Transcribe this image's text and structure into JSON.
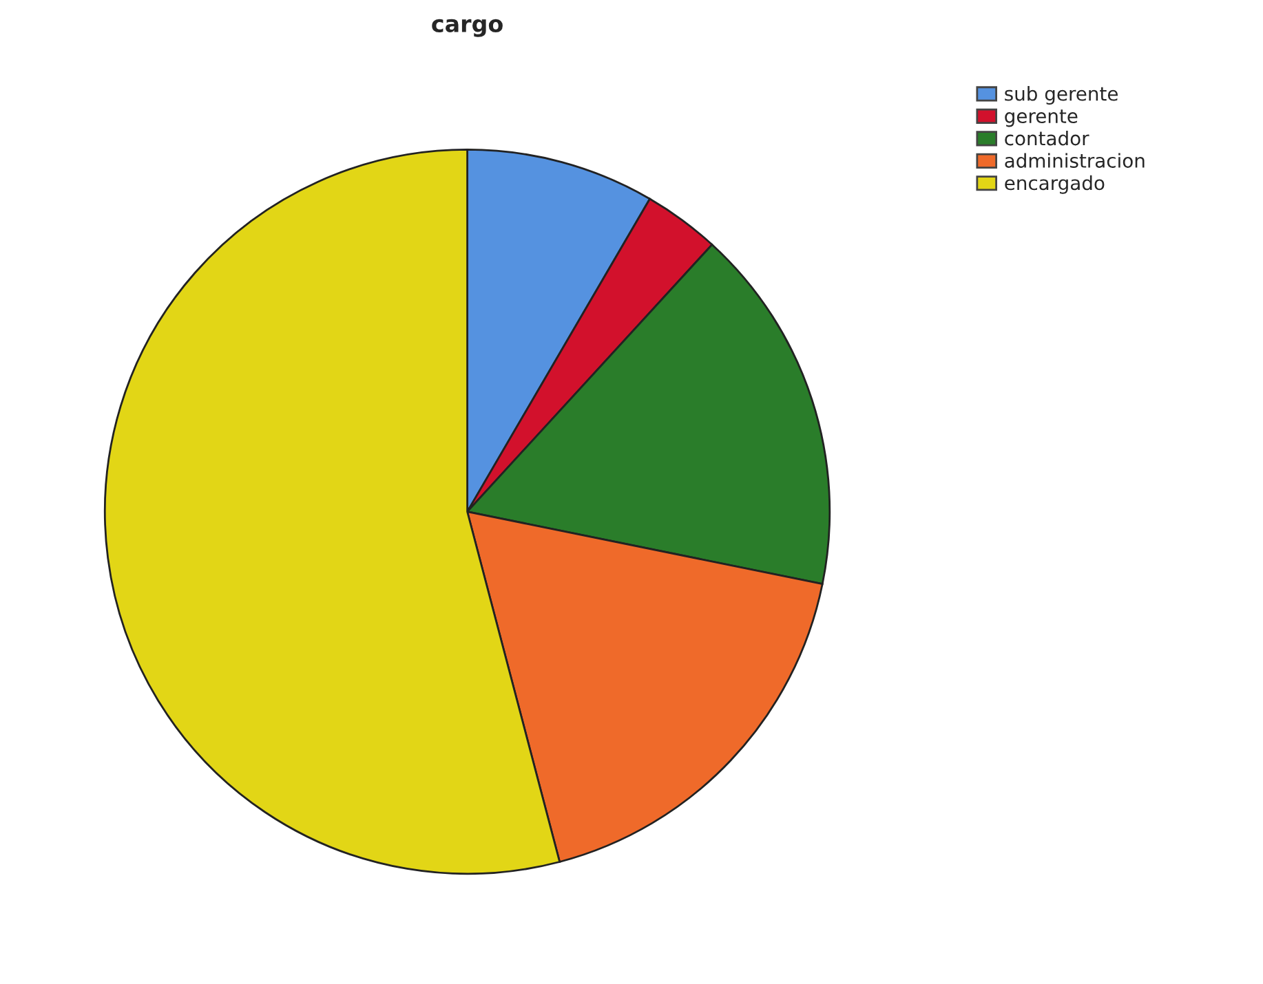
{
  "chart_data": {
    "type": "pie",
    "title": "cargo",
    "categories": [
      "sub gerente",
      "gerente",
      "contador",
      "administracion",
      "encargado"
    ],
    "values": [
      8.4,
      3.4,
      16.4,
      17.7,
      54.1
    ],
    "colors": [
      "#5592e0",
      "#d2112c",
      "#2a7d2a",
      "#ef6a2a",
      "#e2d616"
    ],
    "legend": "top right"
  }
}
